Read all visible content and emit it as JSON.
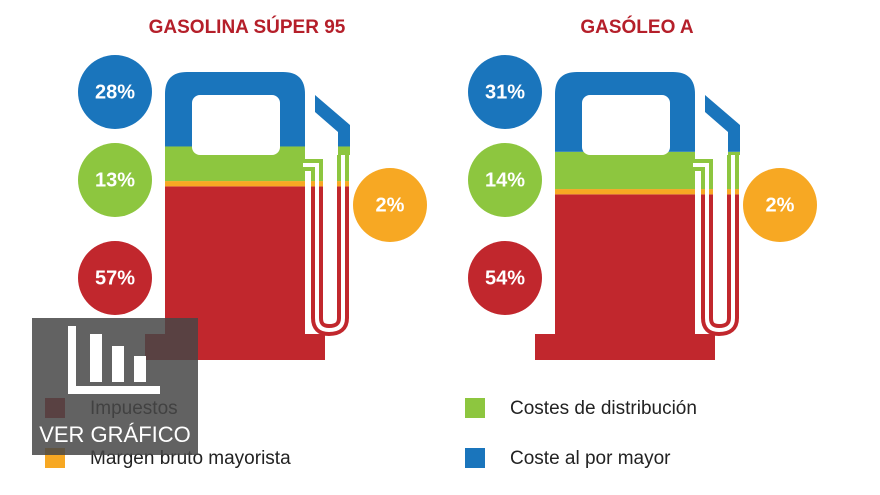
{
  "chart_data": {
    "type": "pump",
    "categories": [
      "GASOLINA SÚPER 95",
      "GASÓLEO A"
    ],
    "ylim": [
      0,
      100
    ],
    "series": [
      {
        "name": "Impuestos",
        "color": "#c1272d",
        "values": [
          57,
          54
        ],
        "value_labels": [
          "57%",
          "54%"
        ]
      },
      {
        "name": "Margen bruto mayorista",
        "color": "#f7a823",
        "values": [
          2,
          2
        ],
        "value_labels": [
          "2%",
          "2%"
        ]
      },
      {
        "name": "Costes de distribución",
        "color": "#8dc63f",
        "values": [
          13,
          14
        ],
        "value_labels": [
          "13%",
          "14%"
        ]
      },
      {
        "name": "Coste al por mayor",
        "color": "#1a75bc",
        "values": [
          28,
          31
        ],
        "value_labels": [
          "28%",
          "31%"
        ]
      }
    ]
  },
  "button": {
    "label": "VER GRÁFICO"
  }
}
